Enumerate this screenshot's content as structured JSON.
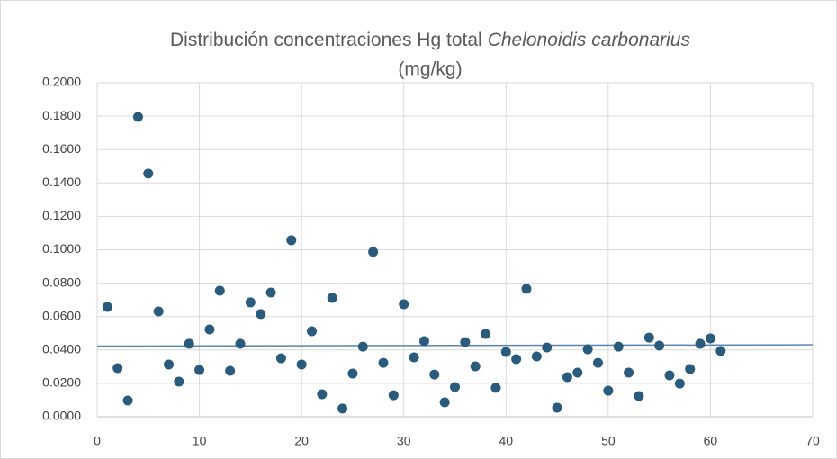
{
  "chart_data": {
    "type": "scatter",
    "title": [
      "Distribución concentraciones Hg total",
      "Chelonoidis carbonarius",
      "(mg/kg)"
    ],
    "x": [
      1,
      2,
      3,
      4,
      5,
      6,
      7,
      8,
      9,
      10,
      11,
      12,
      13,
      14,
      15,
      16,
      17,
      18,
      19,
      20,
      21,
      22,
      23,
      24,
      25,
      26,
      27,
      28,
      29,
      30,
      31,
      32,
      33,
      34,
      35,
      36,
      37,
      38,
      39,
      40,
      41,
      42,
      43,
      44,
      45,
      46,
      47,
      48,
      49,
      50,
      51,
      52,
      53,
      54,
      55,
      56,
      57,
      58,
      59,
      60,
      61
    ],
    "values": [
      0.0658,
      0.0291,
      0.0097,
      0.1795,
      0.1456,
      0.0631,
      0.0313,
      0.021,
      0.0437,
      0.028,
      0.0523,
      0.0755,
      0.0275,
      0.0437,
      0.0685,
      0.0615,
      0.0744,
      0.035,
      0.1057,
      0.0313,
      0.0512,
      0.0135,
      0.0712,
      0.0049,
      0.0259,
      0.042,
      0.0987,
      0.0323,
      0.0129,
      0.0674,
      0.0356,
      0.0453,
      0.0253,
      0.0086,
      0.0178,
      0.0447,
      0.0302,
      0.0496,
      0.0173,
      0.0388,
      0.0345,
      0.0766,
      0.0361,
      0.0415,
      0.0054,
      0.0237,
      0.0264,
      0.0404,
      0.0323,
      0.0156,
      0.042,
      0.0264,
      0.0124,
      0.0474,
      0.0426,
      0.0248,
      0.0199,
      0.0286,
      0.0437,
      0.0469,
      0.0394
    ],
    "color": "#2a5b7d",
    "trendline": {
      "x": [
        0,
        70
      ],
      "values": [
        0.0423,
        0.0431
      ],
      "color": "#5b84ad"
    },
    "xlim": [
      0,
      70
    ],
    "xticks": [
      0,
      10,
      20,
      30,
      40,
      50,
      60,
      70
    ],
    "ylim": [
      0,
      0.2
    ],
    "yticks": [
      {
        "value": 0,
        "label": "0.0000"
      },
      {
        "value": 0.02,
        "label": "0.0200"
      },
      {
        "value": 0.04,
        "label": "0.0400"
      },
      {
        "value": 0.06,
        "label": "0.0600"
      },
      {
        "value": 0.08,
        "label": "0.0800"
      },
      {
        "value": 0.1,
        "label": "0.1000"
      },
      {
        "value": 0.12,
        "label": "0.1200"
      },
      {
        "value": 0.14,
        "label": "0.1400"
      },
      {
        "value": 0.16,
        "label": "0.1600"
      },
      {
        "value": 0.18,
        "label": "0.1800"
      },
      {
        "value": 0.2,
        "label": "0.2000"
      }
    ],
    "grid": true
  }
}
